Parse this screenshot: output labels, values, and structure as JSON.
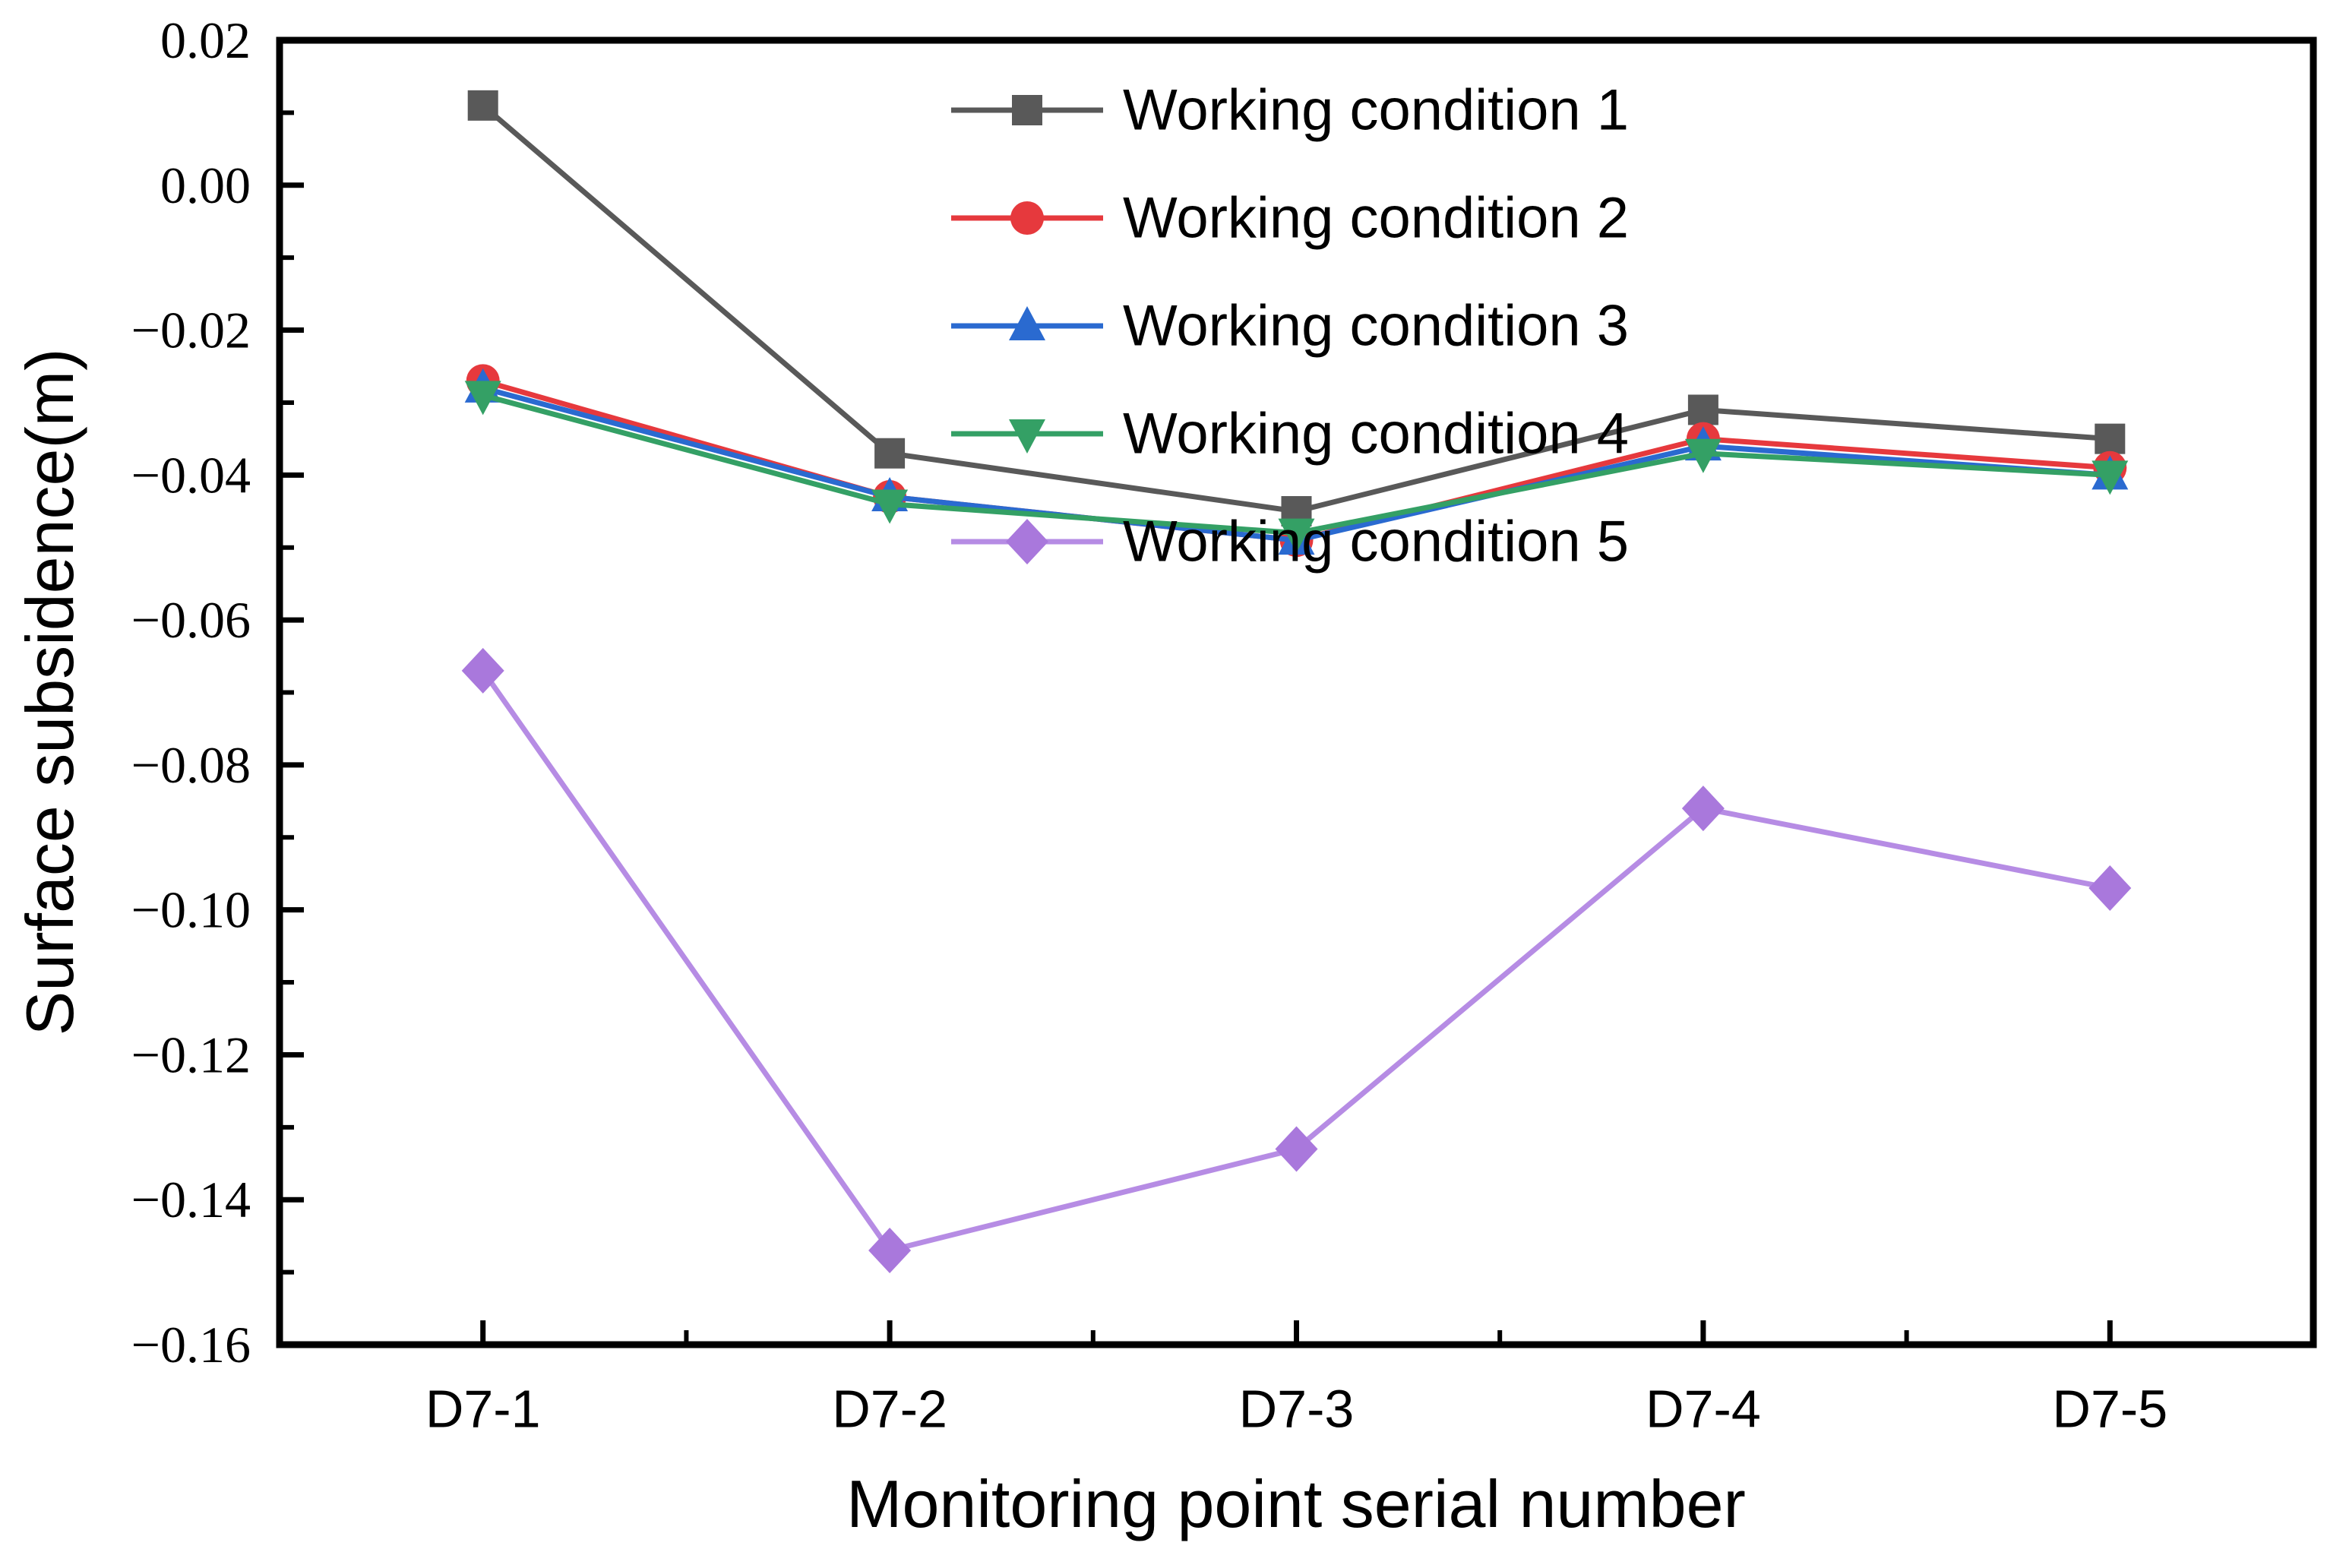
{
  "chart_data": {
    "type": "line",
    "xlabel": "Monitoring point serial number",
    "ylabel": "Surface subsidence(m)",
    "categories": [
      "D7-1",
      "D7-2",
      "D7-3",
      "D7-4",
      "D7-5"
    ],
    "ylim": [
      -0.16,
      0.02
    ],
    "y_major_step": 0.02,
    "y_minor_step": 0.01,
    "y_tick_labels": [
      "0.02",
      "0.00",
      "−0.02",
      "−0.04",
      "−0.06",
      "−0.08",
      "−0.10",
      "−0.12",
      "−0.14",
      "−0.16"
    ],
    "grid": false,
    "legend_position": "inside-top-center",
    "series": [
      {
        "name": "Working condition 1",
        "marker": "square",
        "color": "#595959",
        "line_color": "#595959",
        "values": [
          0.011,
          -0.037,
          -0.045,
          -0.031,
          -0.035
        ]
      },
      {
        "name": "Working condition 2",
        "marker": "circle",
        "color": "#e6393d",
        "line_color": "#e6393d",
        "values": [
          -0.027,
          -0.043,
          -0.049,
          -0.035,
          -0.039
        ]
      },
      {
        "name": "Working condition 3",
        "marker": "triangle-up",
        "color": "#2a6ad0",
        "line_color": "#2a6ad0",
        "values": [
          -0.028,
          -0.043,
          -0.049,
          -0.036,
          -0.04
        ]
      },
      {
        "name": "Working condition 4",
        "marker": "triangle-down",
        "color": "#34a065",
        "line_color": "#34a065",
        "values": [
          -0.029,
          -0.044,
          -0.048,
          -0.037,
          -0.04
        ]
      },
      {
        "name": "Working condition 5",
        "marker": "diamond",
        "color": "#a978dc",
        "line_color": "#b68ce4",
        "values": [
          -0.067,
          -0.147,
          -0.133,
          -0.086,
          -0.097
        ]
      }
    ]
  }
}
